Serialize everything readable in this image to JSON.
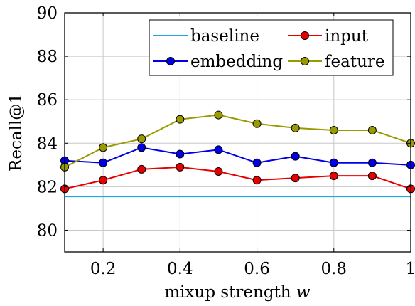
{
  "chart_data": {
    "type": "line",
    "title": "",
    "xlabel": "mixup strength",
    "xlabel_symbol": "w",
    "ylabel": "Recall@1",
    "xlim": [
      0.1,
      1.0
    ],
    "ylim": [
      79,
      90
    ],
    "xticks": [
      0.2,
      0.4,
      0.6,
      0.8,
      1.0
    ],
    "xtick_labels": [
      "0.2",
      "0.4",
      "0.6",
      "0.8",
      "1"
    ],
    "yticks": [
      80,
      82,
      84,
      86,
      88,
      90
    ],
    "ytick_labels": [
      "80",
      "82",
      "84",
      "86",
      "88",
      "90"
    ],
    "grid": true,
    "legend_position": "top-right",
    "x": [
      0.1,
      0.2,
      0.3,
      0.4,
      0.5,
      0.6,
      0.7,
      0.8,
      0.9,
      1.0
    ],
    "series": [
      {
        "name": "baseline",
        "color": "#1fa8dc",
        "marker": "none",
        "values": [
          81.55,
          81.55,
          81.55,
          81.55,
          81.55,
          81.55,
          81.55,
          81.55,
          81.55,
          81.55
        ]
      },
      {
        "name": "input",
        "color": "#e60000",
        "marker": "circle",
        "values": [
          81.9,
          82.3,
          82.8,
          82.9,
          82.7,
          82.3,
          82.4,
          82.5,
          82.5,
          81.9
        ]
      },
      {
        "name": "embedding",
        "color": "#0000e6",
        "marker": "circle",
        "values": [
          83.2,
          83.1,
          83.8,
          83.5,
          83.7,
          83.1,
          83.4,
          83.1,
          83.1,
          83.0
        ]
      },
      {
        "name": "feature",
        "color": "#999900",
        "marker": "circle",
        "values": [
          82.9,
          83.8,
          84.2,
          85.1,
          85.3,
          84.9,
          84.7,
          84.6,
          84.6,
          84.0
        ]
      }
    ]
  }
}
